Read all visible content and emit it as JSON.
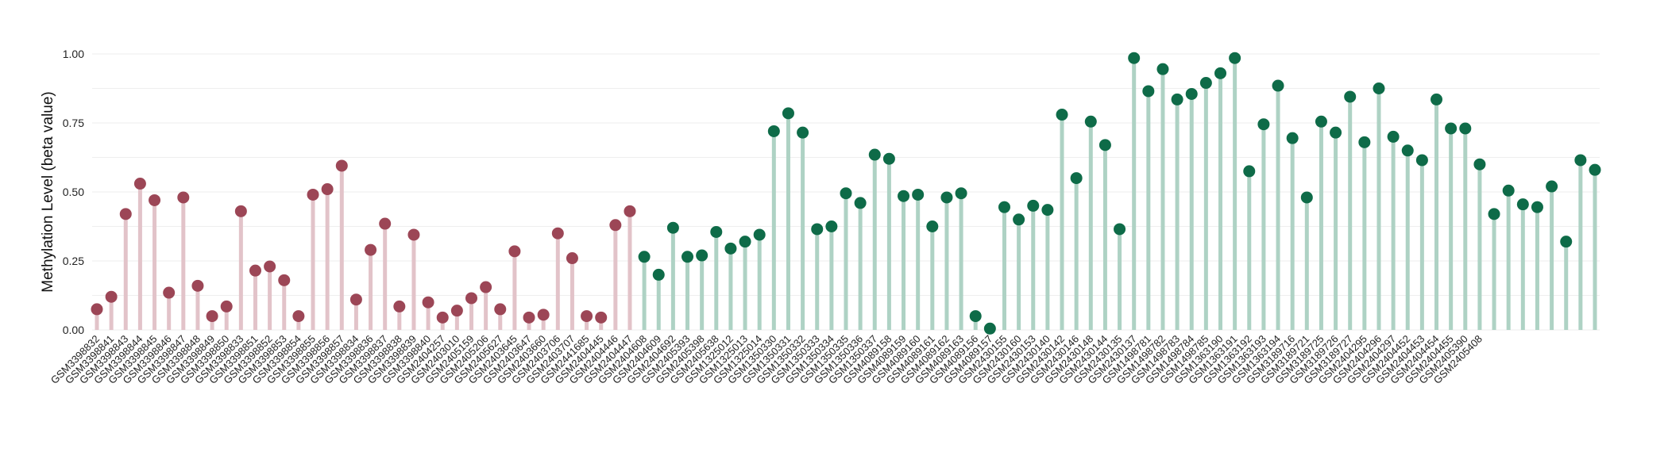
{
  "chart_data": {
    "type": "lollipop",
    "title": "",
    "xlabel": "",
    "ylabel": "Methylation Level (beta value)",
    "ylim": [
      0,
      1
    ],
    "yticks": [
      "0.00",
      "0.25",
      "0.50",
      "0.75",
      "1.00"
    ],
    "grid": true,
    "legend": "none",
    "colors": {
      "group_a_point": "#9c4656",
      "group_a_stem": "#e2c3c9",
      "group_b_point": "#0e6b48",
      "group_b_stem": "#aed2c4",
      "grid": "#eeeeee"
    },
    "samples": [
      {
        "label": "GSM3398832",
        "value": 0.075,
        "group": "a"
      },
      {
        "label": "GSM3398841",
        "value": 0.12,
        "group": "a"
      },
      {
        "label": "GSM3398843",
        "value": 0.42,
        "group": "a"
      },
      {
        "label": "GSM3398844",
        "value": 0.53,
        "group": "a"
      },
      {
        "label": "GSM3398845",
        "value": 0.47,
        "group": "a"
      },
      {
        "label": "GSM3398846",
        "value": 0.135,
        "group": "a"
      },
      {
        "label": "GSM3398847",
        "value": 0.48,
        "group": "a"
      },
      {
        "label": "GSM3398848",
        "value": 0.16,
        "group": "a"
      },
      {
        "label": "GSM3398849",
        "value": 0.05,
        "group": "a"
      },
      {
        "label": "GSM3398850",
        "value": 0.085,
        "group": "a"
      },
      {
        "label": "GSM3398833",
        "value": 0.43,
        "group": "a"
      },
      {
        "label": "GSM3398851",
        "value": 0.215,
        "group": "a"
      },
      {
        "label": "GSM3398852",
        "value": 0.23,
        "group": "a"
      },
      {
        "label": "GSM3398853",
        "value": 0.18,
        "group": "a"
      },
      {
        "label": "GSM3398854",
        "value": 0.05,
        "group": "a"
      },
      {
        "label": "GSM3398855",
        "value": 0.49,
        "group": "a"
      },
      {
        "label": "GSM3398856",
        "value": 0.51,
        "group": "a"
      },
      {
        "label": "GSM3398857",
        "value": 0.595,
        "group": "a"
      },
      {
        "label": "GSM3398834",
        "value": 0.11,
        "group": "a"
      },
      {
        "label": "GSM3398836",
        "value": 0.29,
        "group": "a"
      },
      {
        "label": "GSM3398837",
        "value": 0.385,
        "group": "a"
      },
      {
        "label": "GSM3398838",
        "value": 0.085,
        "group": "a"
      },
      {
        "label": "GSM3398839",
        "value": 0.345,
        "group": "a"
      },
      {
        "label": "GSM3398840",
        "value": 0.1,
        "group": "a"
      },
      {
        "label": "GSM2404257",
        "value": 0.045,
        "group": "a"
      },
      {
        "label": "GSM2403010",
        "value": 0.07,
        "group": "a"
      },
      {
        "label": "GSM2405159",
        "value": 0.115,
        "group": "a"
      },
      {
        "label": "GSM2405206",
        "value": 0.155,
        "group": "a"
      },
      {
        "label": "GSM2405627",
        "value": 0.075,
        "group": "a"
      },
      {
        "label": "GSM2403645",
        "value": 0.285,
        "group": "a"
      },
      {
        "label": "GSM2403647",
        "value": 0.045,
        "group": "a"
      },
      {
        "label": "GSM2403660",
        "value": 0.055,
        "group": "a"
      },
      {
        "label": "GSM2403706",
        "value": 0.35,
        "group": "a"
      },
      {
        "label": "GSM2403707",
        "value": 0.26,
        "group": "a"
      },
      {
        "label": "GSM2441685",
        "value": 0.05,
        "group": "a"
      },
      {
        "label": "GSM2404445",
        "value": 0.045,
        "group": "a"
      },
      {
        "label": "GSM2404446",
        "value": 0.38,
        "group": "a"
      },
      {
        "label": "GSM2404447",
        "value": 0.43,
        "group": "a"
      },
      {
        "label": "GSM2404608",
        "value": 0.265,
        "group": "b"
      },
      {
        "label": "GSM2404609",
        "value": 0.2,
        "group": "b"
      },
      {
        "label": "GSM2404692",
        "value": 0.37,
        "group": "b"
      },
      {
        "label": "GSM2405393",
        "value": 0.265,
        "group": "b"
      },
      {
        "label": "GSM2405398",
        "value": 0.27,
        "group": "b"
      },
      {
        "label": "GSM2405638",
        "value": 0.355,
        "group": "b"
      },
      {
        "label": "GSM1325012",
        "value": 0.295,
        "group": "b"
      },
      {
        "label": "GSM1325013",
        "value": 0.32,
        "group": "b"
      },
      {
        "label": "GSM1325014",
        "value": 0.345,
        "group": "b"
      },
      {
        "label": "GSM1350330",
        "value": 0.72,
        "group": "b"
      },
      {
        "label": "GSM1350331",
        "value": 0.785,
        "group": "b"
      },
      {
        "label": "GSM1350332",
        "value": 0.715,
        "group": "b"
      },
      {
        "label": "GSM1350333",
        "value": 0.365,
        "group": "b"
      },
      {
        "label": "GSM1350334",
        "value": 0.375,
        "group": "b"
      },
      {
        "label": "GSM1350335",
        "value": 0.495,
        "group": "b"
      },
      {
        "label": "GSM1350336",
        "value": 0.46,
        "group": "b"
      },
      {
        "label": "GSM1350337",
        "value": 0.635,
        "group": "b"
      },
      {
        "label": "GSM4089158",
        "value": 0.62,
        "group": "b"
      },
      {
        "label": "GSM4089159",
        "value": 0.485,
        "group": "b"
      },
      {
        "label": "GSM4089160",
        "value": 0.49,
        "group": "b"
      },
      {
        "label": "GSM4089161",
        "value": 0.375,
        "group": "b"
      },
      {
        "label": "GSM4089162",
        "value": 0.48,
        "group": "b"
      },
      {
        "label": "GSM4089163",
        "value": 0.495,
        "group": "b"
      },
      {
        "label": "GSM4089156",
        "value": 0.05,
        "group": "b"
      },
      {
        "label": "GSM4089157",
        "value": 0.005,
        "group": "b"
      },
      {
        "label": "GSM2430155",
        "value": 0.445,
        "group": "b"
      },
      {
        "label": "GSM2430160",
        "value": 0.4,
        "group": "b"
      },
      {
        "label": "GSM2430153",
        "value": 0.45,
        "group": "b"
      },
      {
        "label": "GSM2430140",
        "value": 0.435,
        "group": "b"
      },
      {
        "label": "GSM2430142",
        "value": 0.78,
        "group": "b"
      },
      {
        "label": "GSM2430146",
        "value": 0.55,
        "group": "b"
      },
      {
        "label": "GSM2430148",
        "value": 0.755,
        "group": "b"
      },
      {
        "label": "GSM2430144",
        "value": 0.67,
        "group": "b"
      },
      {
        "label": "GSM2430135",
        "value": 0.365,
        "group": "b"
      },
      {
        "label": "GSM2430137",
        "value": 0.985,
        "group": "b"
      },
      {
        "label": "GSM1498781",
        "value": 0.865,
        "group": "b"
      },
      {
        "label": "GSM1498782",
        "value": 0.945,
        "group": "b"
      },
      {
        "label": "GSM1498783",
        "value": 0.835,
        "group": "b"
      },
      {
        "label": "GSM1498784",
        "value": 0.855,
        "group": "b"
      },
      {
        "label": "GSM1498785",
        "value": 0.895,
        "group": "b"
      },
      {
        "label": "GSM1363190",
        "value": 0.93,
        "group": "b"
      },
      {
        "label": "GSM1363191",
        "value": 0.985,
        "group": "b"
      },
      {
        "label": "GSM1363192",
        "value": 0.575,
        "group": "b"
      },
      {
        "label": "GSM1363193",
        "value": 0.745,
        "group": "b"
      },
      {
        "label": "GSM1363194",
        "value": 0.885,
        "group": "b"
      },
      {
        "label": "GSM3189716",
        "value": 0.695,
        "group": "b"
      },
      {
        "label": "GSM3189721",
        "value": 0.48,
        "group": "b"
      },
      {
        "label": "GSM3189725",
        "value": 0.755,
        "group": "b"
      },
      {
        "label": "GSM3189726",
        "value": 0.715,
        "group": "b"
      },
      {
        "label": "GSM3189727",
        "value": 0.845,
        "group": "b"
      },
      {
        "label": "GSM2404295",
        "value": 0.68,
        "group": "b"
      },
      {
        "label": "GSM2404296",
        "value": 0.875,
        "group": "b"
      },
      {
        "label": "GSM2404297",
        "value": 0.7,
        "group": "b"
      },
      {
        "label": "GSM2404452",
        "value": 0.65,
        "group": "b"
      },
      {
        "label": "GSM2404453",
        "value": 0.615,
        "group": "b"
      },
      {
        "label": "GSM2404454",
        "value": 0.835,
        "group": "b"
      },
      {
        "label": "GSM2404455",
        "value": 0.73,
        "group": "b"
      },
      {
        "label": "GSM2405390",
        "value": 0.73,
        "group": "b"
      },
      {
        "label": "GSM2405408",
        "value": 0.6,
        "group": "b"
      },
      {
        "label": "",
        "value": 0.42,
        "group": "b"
      },
      {
        "label": "",
        "value": 0.505,
        "group": "b"
      },
      {
        "label": "",
        "value": 0.455,
        "group": "b"
      },
      {
        "label": "",
        "value": 0.445,
        "group": "b"
      },
      {
        "label": "",
        "value": 0.52,
        "group": "b"
      },
      {
        "label": "",
        "value": 0.32,
        "group": "b"
      },
      {
        "label": "",
        "value": 0.615,
        "group": "b"
      },
      {
        "label": "",
        "value": 0.58,
        "group": "b"
      }
    ]
  }
}
